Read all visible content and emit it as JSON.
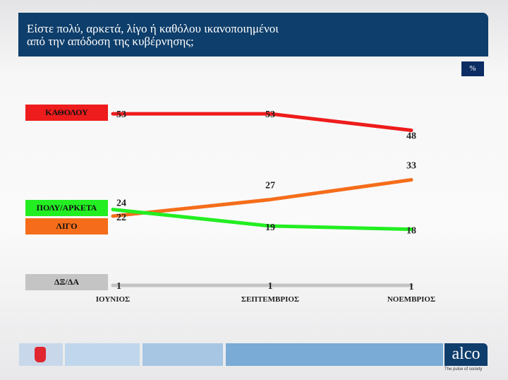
{
  "header": {
    "title_line1": "Είστε πολύ, αρκετά, λίγο ή καθόλου ικανοποιημένοι",
    "title_line2": "από την απόδοση της κυβέρνησης;",
    "unit_badge": "%"
  },
  "chart_data": {
    "type": "line",
    "categories": [
      "ΙΟΥΝΙΟΣ",
      "ΣΕΠΤΕΜΒΡΙΟΣ",
      "ΝΟΕΜΒΡΙΟΣ"
    ],
    "series": [
      {
        "name": "ΚΑΘΟΛΟΥ",
        "values": [
          53,
          53,
          48
        ],
        "color": "#ee1c1c"
      },
      {
        "name": "ΠΟΛΥ/ΑΡΚΕΤΑ",
        "values": [
          24,
          19,
          18
        ],
        "color": "#22ee22"
      },
      {
        "name": "ΛΙΓΟ",
        "values": [
          22,
          27,
          33
        ],
        "color": "#f56d1a"
      },
      {
        "name": "ΔΞ/ΔΑ",
        "values": [
          1,
          1,
          1
        ],
        "color": "#c4c4c4"
      }
    ],
    "legend": "left",
    "grid": false
  },
  "footer": {
    "brand": "alco",
    "tagline": "The pulse of society",
    "left_logo": "A NEWS"
  }
}
